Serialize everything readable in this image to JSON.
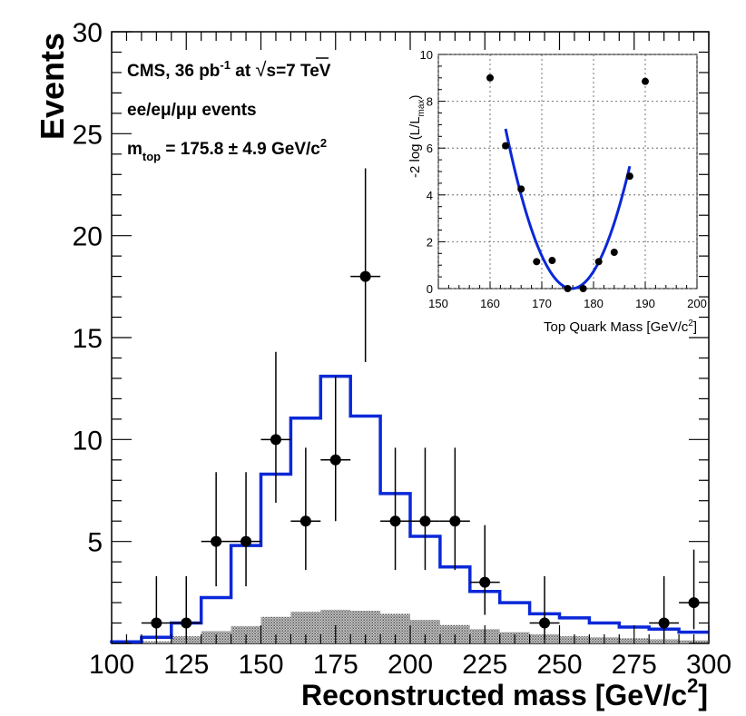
{
  "colors": {
    "signal": "#0a28d8",
    "points": "#000000",
    "background_fill": "#8a8a8a"
  },
  "chart_data": [
    {
      "type": "histogram",
      "name": "main",
      "xlabel": "Reconstructed mass [GeV/c²]",
      "xlabel_main": "Reconstructed mass [GeV/c",
      "xlabel_sup": "2",
      "xlabel_end": "]",
      "ylabel": "Events",
      "xlim": [
        100,
        300
      ],
      "ylim": [
        0,
        30
      ],
      "x_ticks": [
        "100",
        "125",
        "150",
        "175",
        "200",
        "225",
        "250",
        "275",
        "300"
      ],
      "y_ticks": [
        "5",
        "10",
        "15",
        "20",
        "25",
        "30"
      ],
      "annotations": {
        "line1_a": "CMS, 36 pb",
        "line1_sup": "-1",
        "line1_b": " at ",
        "line1_sqrt": "√",
        "line1_c": "s=7 TeV",
        "line2": "ee/eμ/μμ events",
        "line3_m": "m",
        "line3_sub": "top",
        "line3_rest": " =  175.8 ± 4.9 GeV/c",
        "line3_sup": "2"
      },
      "signal_hist": {
        "bin_edges": [
          100,
          110,
          120,
          130,
          140,
          150,
          160,
          170,
          180,
          190,
          200,
          210,
          220,
          230,
          240,
          250,
          260,
          270,
          280,
          290,
          300
        ],
        "values": [
          0.08,
          0.3,
          1.0,
          2.25,
          4.8,
          8.3,
          11.05,
          13.1,
          11.15,
          7.35,
          5.25,
          3.75,
          2.55,
          2.0,
          1.45,
          1.25,
          1.0,
          0.8,
          0.7,
          0.55
        ]
      },
      "background_hist": {
        "bin_edges": [
          100,
          110,
          120,
          130,
          140,
          150,
          160,
          170,
          180,
          190,
          200,
          210,
          220,
          230,
          240,
          250,
          260,
          270,
          280,
          290,
          300
        ],
        "values": [
          0.05,
          0.1,
          0.35,
          0.6,
          0.85,
          1.3,
          1.55,
          1.65,
          1.6,
          1.45,
          1.15,
          0.9,
          0.7,
          0.55,
          0.45,
          0.35,
          0.3,
          0.25,
          0.2,
          0.15
        ]
      },
      "data_points": {
        "x": [
          115,
          125,
          135,
          145,
          155,
          165,
          175,
          185,
          195,
          205,
          215,
          225,
          245,
          285,
          295
        ],
        "y": [
          1,
          1,
          5,
          5,
          10,
          6,
          9,
          18,
          6,
          6,
          6,
          3,
          1,
          1,
          2
        ],
        "err_low": [
          0.8,
          0.8,
          2.2,
          2.2,
          3.1,
          2.4,
          3.0,
          4.2,
          2.4,
          2.4,
          2.4,
          1.6,
          0.8,
          0.8,
          1.3
        ],
        "err_high": [
          2.3,
          2.3,
          3.4,
          3.4,
          4.3,
          3.6,
          4.1,
          5.3,
          3.6,
          3.6,
          3.6,
          2.8,
          2.3,
          2.3,
          2.6
        ],
        "x_halfwidth": 5
      }
    },
    {
      "type": "scatter",
      "name": "inset",
      "xlabel": "Top Quark Mass [GeV/c²]",
      "xlabel_main": "Top Quark Mass [GeV/c",
      "xlabel_sup": "2",
      "xlabel_end": "]",
      "ylabel": "-2 log (L/L_max)",
      "ylabel_main": "-2 log (L/L",
      "ylabel_sub": "max",
      "ylabel_end": ")",
      "xlim": [
        150,
        200
      ],
      "ylim": [
        0,
        10
      ],
      "grid": true,
      "x_ticks": [
        "150",
        "160",
        "170",
        "180",
        "190",
        "200"
      ],
      "y_ticks": [
        "0",
        "2",
        "4",
        "6",
        "8",
        "10"
      ],
      "points": {
        "x": [
          160,
          163,
          166,
          169,
          172,
          175,
          178,
          181,
          184,
          187,
          190
        ],
        "y": [
          9.0,
          6.1,
          4.25,
          1.15,
          1.2,
          0.0,
          0.0,
          1.15,
          1.55,
          4.8,
          8.85
        ]
      },
      "fit": {
        "type": "parabola",
        "center": 175.8,
        "min": 0.0,
        "half_width_one_unit": 4.9,
        "x_range": [
          163,
          187
        ]
      }
    }
  ]
}
